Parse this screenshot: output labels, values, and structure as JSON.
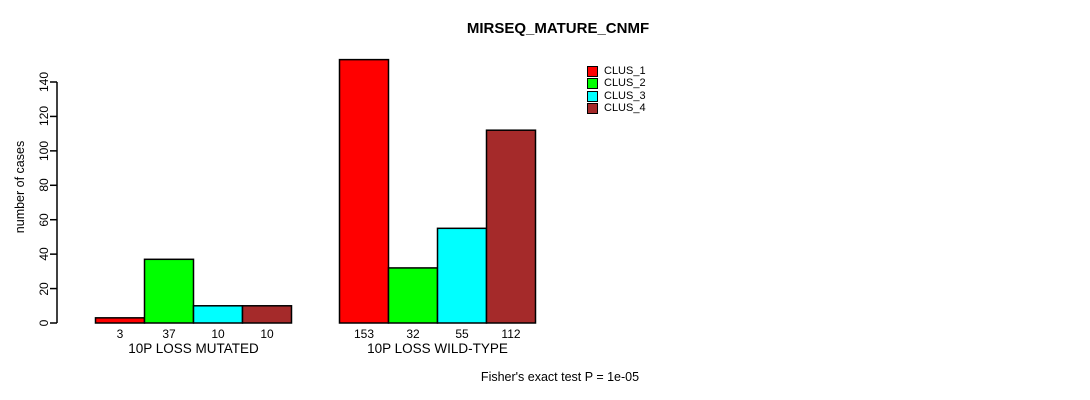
{
  "chart_data": {
    "type": "bar",
    "title": "MIRSEQ_MATURE_CNMF",
    "ylabel": "number of cases",
    "xlabel": "",
    "ylim": [
      0,
      140
    ],
    "yticks": [
      0,
      20,
      40,
      60,
      80,
      100,
      120,
      140
    ],
    "grid": false,
    "legend_position": "top-right",
    "categories": [
      "10P LOSS MUTATED",
      "10P LOSS WILD-TYPE"
    ],
    "series": [
      {
        "name": "CLUS_1",
        "color": "#FF0000",
        "values": [
          3,
          153
        ]
      },
      {
        "name": "CLUS_2",
        "color": "#00FF00",
        "values": [
          37,
          32
        ]
      },
      {
        "name": "CLUS_3",
        "color": "#00FFFF",
        "values": [
          10,
          55
        ]
      },
      {
        "name": "CLUS_4",
        "color": "#A52A2A",
        "values": [
          10,
          112
        ]
      }
    ],
    "bar_value_labels": [
      [
        "3",
        "37",
        "10",
        "10"
      ],
      [
        "153",
        "32",
        "55",
        "112"
      ]
    ],
    "annotation": "Fisher's exact test P = 1e-05",
    "axis_color": "#000000",
    "bar_border_color": "#000000"
  }
}
